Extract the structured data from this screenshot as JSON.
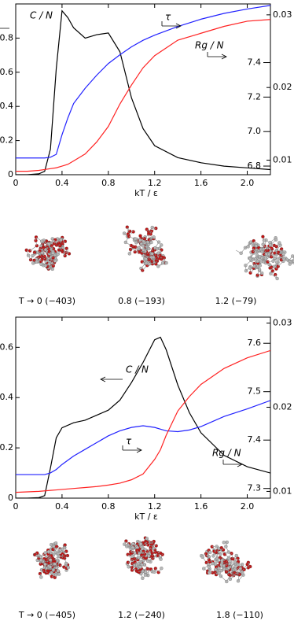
{
  "chart_data": [
    {
      "type": "line",
      "x_label": "kT / ε",
      "x": [
        0,
        0.1,
        0.2,
        0.25,
        0.3,
        0.35,
        0.4,
        0.45,
        0.5,
        0.6,
        0.7,
        0.8,
        0.9,
        1.0,
        1.1,
        1.2,
        1.4,
        1.6,
        1.8,
        2.0,
        2.2
      ],
      "xlim": [
        0,
        2.2
      ],
      "xticks": [
        0,
        0.4,
        0.8,
        1.2,
        1.6,
        {
          "value": 2,
          "label": "2.0"
        }
      ],
      "ylim": [
        0,
        1.0
      ],
      "yticks": [
        0,
        0.2,
        0.4,
        0.6,
        0.8
      ],
      "y2lim": [
        0.008,
        0.0315
      ],
      "y2ticks": [
        0.01,
        0.02,
        0.03
      ],
      "y3lim": [
        6.75,
        7.74
      ],
      "y3ticks": [
        6.8,
        {
          "value": 7,
          "label": "7.0"
        },
        7.2,
        7.4
      ],
      "series": [
        {
          "name": "C / N",
          "color": "#000000",
          "axis": "y",
          "values": [
            0,
            0,
            0.005,
            0.02,
            0.15,
            0.62,
            0.96,
            0.92,
            0.86,
            0.8,
            0.82,
            0.83,
            0.72,
            0.45,
            0.27,
            0.17,
            0.1,
            0.07,
            0.05,
            0.04,
            0.03
          ]
        },
        {
          "name": "τ",
          "color": "#2222ff",
          "axis": "y2",
          "values": [
            0.0103,
            0.0103,
            0.0103,
            0.0103,
            0.0104,
            0.0108,
            0.0135,
            0.0158,
            0.0178,
            0.0199,
            0.0217,
            0.0233,
            0.0245,
            0.0256,
            0.0265,
            0.0272,
            0.0284,
            0.0294,
            0.0302,
            0.0308,
            0.0313
          ]
        },
        {
          "name": "Rg / N",
          "color": "#ff2222",
          "axis": "y3",
          "values": [
            6.77,
            6.77,
            6.775,
            6.78,
            6.785,
            6.79,
            6.8,
            6.81,
            6.83,
            6.87,
            6.94,
            7.03,
            7.16,
            7.27,
            7.37,
            7.44,
            7.53,
            7.57,
            7.61,
            7.64,
            7.65
          ]
        }
      ]
    },
    {
      "type": "line",
      "x_label": "kT / ε",
      "x": [
        0,
        0.1,
        0.2,
        0.25,
        0.3,
        0.35,
        0.4,
        0.5,
        0.6,
        0.7,
        0.8,
        0.9,
        1.0,
        1.1,
        1.2,
        1.25,
        1.3,
        1.4,
        1.5,
        1.6,
        1.8,
        2.0,
        2.2
      ],
      "xlim": [
        0,
        2.2
      ],
      "xticks": [
        0,
        0.4,
        0.8,
        1.2,
        1.6,
        {
          "value": 2,
          "label": "2.0"
        }
      ],
      "ylim": [
        0,
        0.72
      ],
      "yticks": [
        0,
        0.2,
        0.4,
        0.6
      ],
      "y2lim": [
        0.0092,
        0.0307
      ],
      "y2ticks": [
        0.01,
        0.02,
        0.03
      ],
      "y3lim": [
        7.28,
        7.654
      ],
      "y3ticks": [
        7.3,
        7.4,
        7.5,
        7.6
      ],
      "series": [
        {
          "name": "C / N",
          "color": "#000000",
          "axis": "y",
          "values": [
            0,
            0,
            0.002,
            0.01,
            0.12,
            0.24,
            0.28,
            0.3,
            0.31,
            0.33,
            0.35,
            0.39,
            0.46,
            0.54,
            0.63,
            0.64,
            0.59,
            0.45,
            0.34,
            0.26,
            0.17,
            0.125,
            0.1
          ]
        },
        {
          "name": "τ",
          "color": "#2222ff",
          "axis": "y2",
          "values": [
            0.012,
            0.012,
            0.012,
            0.012,
            0.0122,
            0.0126,
            0.0132,
            0.0142,
            0.015,
            0.0158,
            0.0166,
            0.0172,
            0.0176,
            0.0178,
            0.0176,
            0.0174,
            0.0172,
            0.0171,
            0.0173,
            0.0177,
            0.0189,
            0.0198,
            0.0208
          ]
        },
        {
          "name": "Rg / N",
          "color": "#ff2222",
          "axis": "y3",
          "values": [
            7.292,
            7.293,
            7.294,
            7.295,
            7.296,
            7.297,
            7.298,
            7.3,
            7.302,
            7.304,
            7.307,
            7.311,
            7.318,
            7.33,
            7.36,
            7.38,
            7.41,
            7.46,
            7.49,
            7.515,
            7.548,
            7.57,
            7.585
          ]
        }
      ]
    }
  ],
  "snapshot_rows": [
    [
      "T → 0 (−403)",
      "0.8 (−193)",
      "1.2 (−79)"
    ],
    [
      "T → 0 (−405)",
      "1.2 (−240)",
      "1.8 (−110)"
    ]
  ]
}
